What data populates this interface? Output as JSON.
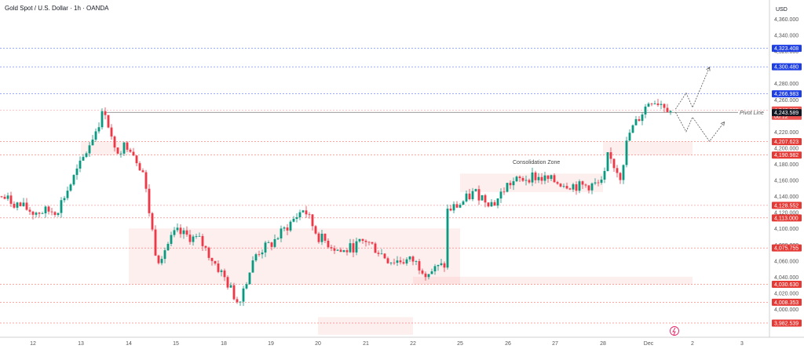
{
  "chart_data": {
    "type": "candlestick",
    "title": "Gold Spot / U.S. Dollar · 1h · OANDA",
    "currency": "USD",
    "ylim": [
      3975,
      4375
    ],
    "y_ticks": [
      4360,
      4340,
      4320,
      4300,
      4280,
      4260,
      4240,
      4220,
      4200,
      4180,
      4160,
      4140,
      4120,
      4100,
      4080,
      4060,
      4040,
      4020,
      4000
    ],
    "x_ticks": [
      "12",
      "13",
      "14",
      "15",
      "18",
      "19",
      "20",
      "21",
      "22",
      "25",
      "26",
      "27",
      "28",
      "Dec",
      "2",
      "3"
    ],
    "price_labels": [
      {
        "text": "4,323.408",
        "value": 4323.408,
        "color": "#1e3fe3"
      },
      {
        "text": "4,300.480",
        "value": 4300.48,
        "color": "#1e3fe3"
      },
      {
        "text": "4,266.983",
        "value": 4266.983,
        "color": "#1e3fe3"
      },
      {
        "text": "4,246.885",
        "sub": "00:12",
        "value": 4246.885,
        "color": "#ef5350"
      },
      {
        "text": "4,243.589",
        "value": 4243.589,
        "color": "#131722"
      },
      {
        "text": "4,207.623",
        "value": 4207.623,
        "color": "#e53935"
      },
      {
        "text": "4,190.982",
        "value": 4190.982,
        "color": "#e53935"
      },
      {
        "text": "4,128.552",
        "value": 4128.552,
        "color": "#e53935"
      },
      {
        "text": "4,113.000",
        "value": 4113.0,
        "color": "#e53935"
      },
      {
        "text": "4,075.755",
        "value": 4075.755,
        "color": "#e53935"
      },
      {
        "text": "4,030.630",
        "value": 4030.63,
        "color": "#e53935"
      },
      {
        "text": "4,008.353",
        "value": 4008.353,
        "color": "#e53935"
      },
      {
        "text": "3,982.539",
        "value": 3982.539,
        "color": "#e53935"
      }
    ],
    "annotations": {
      "pivot_line": {
        "label": "Pivot Line",
        "value": 4244
      },
      "consolidation_zone": {
        "label": "Consolidation Zone"
      }
    },
    "zones": [
      {
        "x_start": "13",
        "x_end": "14",
        "y_start": 4190.982,
        "y_end": 4207.623
      },
      {
        "x_start": "14",
        "x_end": "25",
        "y_start": 4030.63,
        "y_end": 4100
      },
      {
        "x_start": "22",
        "x_end": "Dec 2",
        "y_start": 4030.63,
        "y_end": 4040
      },
      {
        "x_start": "28",
        "x_end": "Dec 2",
        "y_start": 4190.982,
        "y_end": 4207.623
      },
      {
        "x_start": "25",
        "x_end": "28",
        "y_start": 4145,
        "y_end": 4168
      },
      {
        "x_start": "20",
        "x_end": "22",
        "y_start": 3968,
        "y_end": 3990
      }
    ],
    "path_keypoints": [
      {
        "x": "11",
        "y": 4150
      },
      {
        "x": "11.5",
        "y": 4135
      },
      {
        "x": "12",
        "y": 4120
      },
      {
        "x": "12.5",
        "y": 4122
      },
      {
        "x": "13",
        "y": 4180
      },
      {
        "x": "13.5",
        "y": 4248
      },
      {
        "x": "13.7",
        "y": 4195
      },
      {
        "x": "14",
        "y": 4205
      },
      {
        "x": "14.3",
        "y": 4170
      },
      {
        "x": "14.6",
        "y": 4060
      },
      {
        "x": "15",
        "y": 4095
      },
      {
        "x": "15.5",
        "y": 4085
      },
      {
        "x": "18",
        "y": 4040
      },
      {
        "x": "18.3",
        "y": 4008
      },
      {
        "x": "18.7",
        "y": 4070
      },
      {
        "x": "19",
        "y": 4080
      },
      {
        "x": "19.7",
        "y": 4125
      },
      {
        "x": "20",
        "y": 4090
      },
      {
        "x": "20.5",
        "y": 4070
      },
      {
        "x": "21",
        "y": 4085
      },
      {
        "x": "21.5",
        "y": 4060
      },
      {
        "x": "22",
        "y": 4060
      },
      {
        "x": "22.3",
        "y": 4045
      },
      {
        "x": "22.7",
        "y": 4055
      },
      {
        "x": "24.9",
        "y": 4100
      },
      {
        "x": "25",
        "y": 4130
      },
      {
        "x": "25.3",
        "y": 4145
      },
      {
        "x": "25.7",
        "y": 4130
      },
      {
        "x": "26",
        "y": 4155
      },
      {
        "x": "26.5",
        "y": 4165
      },
      {
        "x": "27",
        "y": 4158
      },
      {
        "x": "27.5",
        "y": 4152
      },
      {
        "x": "28",
        "y": 4155
      },
      {
        "x": "28.2",
        "y": 4190
      },
      {
        "x": "28.5",
        "y": 4175
      },
      {
        "x": "28.7",
        "y": 4165
      },
      {
        "x": "29",
        "y": 4215
      },
      {
        "x": "Dec",
        "y": 4260
      },
      {
        "x": "Dec 1.3",
        "y": 4255
      },
      {
        "x": "Dec 1.5",
        "y": 4246
      }
    ]
  }
}
